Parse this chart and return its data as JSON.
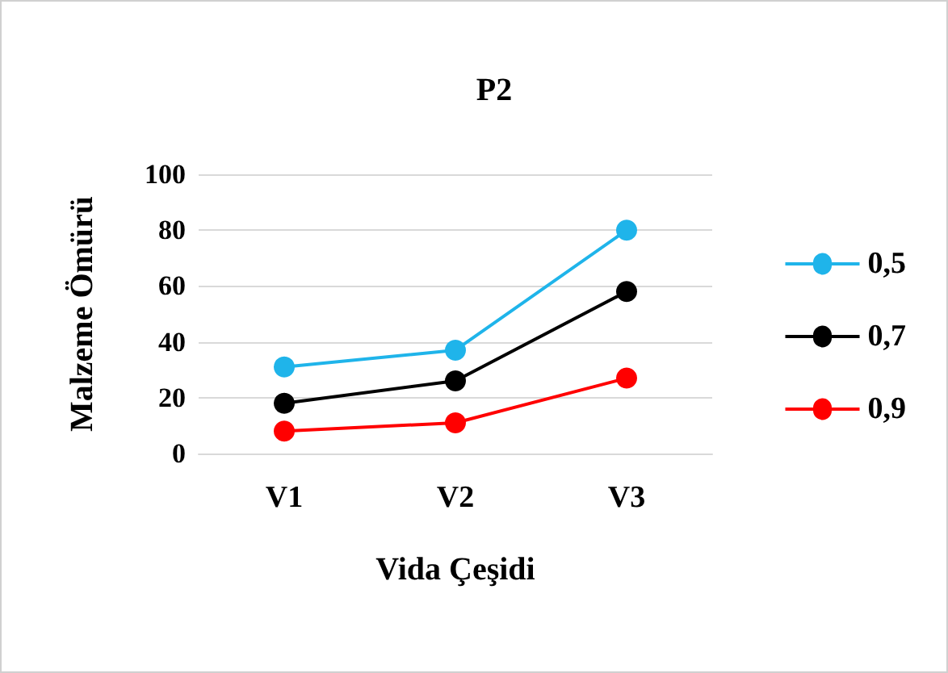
{
  "chart_data": {
    "type": "line",
    "title": "P2",
    "xlabel": "Vida Çeşidi",
    "ylabel": "Malzeme Ömürü",
    "categories": [
      "V1",
      "V2",
      "V3"
    ],
    "series": [
      {
        "name": "0,5",
        "color": "#1fb4ea",
        "values": [
          31,
          37,
          80
        ]
      },
      {
        "name": "0,7",
        "color": "#000000",
        "values": [
          18,
          26,
          58
        ]
      },
      {
        "name": "0,9",
        "color": "#ff0000",
        "values": [
          8,
          11,
          27
        ]
      }
    ],
    "ylim": [
      0,
      100
    ],
    "yticks": [
      0,
      20,
      40,
      60,
      80,
      100
    ],
    "grid": "y",
    "legend": "right",
    "marker": "circle",
    "line_style": "solid"
  }
}
